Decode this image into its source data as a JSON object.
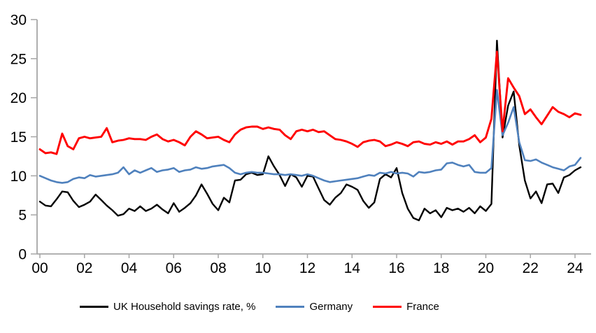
{
  "chart_data": {
    "type": "line",
    "title": "",
    "xlabel": "",
    "ylabel": "",
    "grid": false,
    "legend_position": "bottom",
    "ylim": [
      0,
      30
    ],
    "y_ticks": [
      0,
      5,
      10,
      15,
      20,
      25,
      30
    ],
    "x_tick_labels": [
      "00",
      "02",
      "04",
      "06",
      "08",
      "10",
      "12",
      "14",
      "16",
      "18",
      "20",
      "22",
      "24"
    ],
    "x_tick_step_years": 2,
    "x_start_year": 2000,
    "x_step": 0.25,
    "frequency": "quarterly",
    "axis_color": "#A6A6A6",
    "series": [
      {
        "name": "UK Household savings rate, %",
        "color": "#000000",
        "values": [
          6.7,
          6.2,
          6.1,
          7.0,
          8.0,
          7.9,
          6.8,
          6.0,
          6.3,
          6.7,
          7.6,
          6.9,
          6.2,
          5.6,
          4.9,
          5.1,
          5.8,
          5.5,
          6.1,
          5.5,
          5.8,
          6.3,
          5.7,
          5.2,
          6.5,
          5.4,
          5.9,
          6.5,
          7.5,
          8.9,
          7.7,
          6.4,
          5.6,
          7.2,
          6.6,
          9.4,
          9.5,
          10.2,
          10.4,
          10.1,
          10.2,
          12.5,
          11.2,
          10.1,
          8.7,
          10.2,
          9.8,
          8.6,
          10.0,
          9.9,
          8.4,
          6.9,
          6.3,
          7.2,
          7.8,
          8.9,
          8.6,
          8.2,
          6.8,
          5.9,
          6.6,
          9.6,
          10.2,
          9.8,
          11.0,
          7.8,
          5.8,
          4.6,
          4.3,
          5.8,
          5.2,
          5.6,
          4.7,
          5.9,
          5.6,
          5.8,
          5.4,
          5.9,
          5.2,
          6.1,
          5.5,
          6.4,
          27.3,
          14.9,
          19.0,
          20.8,
          13.9,
          9.4,
          7.1,
          8.0,
          6.5,
          8.9,
          9.0,
          7.8,
          9.8,
          10.1,
          10.7,
          11.1
        ]
      },
      {
        "name": "Germany",
        "color": "#4F81BD",
        "values": [
          10.0,
          9.7,
          9.4,
          9.2,
          9.1,
          9.2,
          9.6,
          9.8,
          9.7,
          10.1,
          9.9,
          10.0,
          10.1,
          10.2,
          10.4,
          11.1,
          10.2,
          10.7,
          10.4,
          10.7,
          11.0,
          10.5,
          10.7,
          10.8,
          11.0,
          10.5,
          10.7,
          10.8,
          11.1,
          10.9,
          11.0,
          11.2,
          11.3,
          11.4,
          11.0,
          10.4,
          10.2,
          10.4,
          10.5,
          10.4,
          10.4,
          10.3,
          10.2,
          10.2,
          10.1,
          10.2,
          10.1,
          10.0,
          10.2,
          10.0,
          9.7,
          9.4,
          9.2,
          9.3,
          9.4,
          9.5,
          9.6,
          9.7,
          9.9,
          10.1,
          10.0,
          10.4,
          10.3,
          10.5,
          10.3,
          10.4,
          10.3,
          9.9,
          10.5,
          10.4,
          10.5,
          10.7,
          10.8,
          11.6,
          11.7,
          11.4,
          11.2,
          11.4,
          10.5,
          10.4,
          10.4,
          11.0,
          21.0,
          15.2,
          16.8,
          18.8,
          14.3,
          12.0,
          11.9,
          12.1,
          11.7,
          11.4,
          11.1,
          10.9,
          10.7,
          11.2,
          11.4,
          12.3
        ]
      },
      {
        "name": "France",
        "color": "#FF0000",
        "values": [
          13.4,
          12.9,
          13.0,
          12.8,
          15.4,
          13.8,
          13.4,
          14.8,
          15.0,
          14.8,
          14.9,
          15.0,
          16.1,
          14.3,
          14.5,
          14.6,
          14.8,
          14.7,
          14.7,
          14.6,
          15.0,
          15.3,
          14.7,
          14.4,
          14.6,
          14.3,
          13.9,
          15.0,
          15.7,
          15.3,
          14.8,
          14.9,
          15.0,
          14.6,
          14.3,
          15.3,
          15.9,
          16.2,
          16.3,
          16.3,
          16.0,
          16.2,
          16.0,
          15.9,
          15.2,
          14.7,
          15.7,
          15.9,
          15.7,
          15.9,
          15.6,
          15.7,
          15.2,
          14.7,
          14.6,
          14.4,
          14.1,
          13.7,
          14.3,
          14.5,
          14.6,
          14.4,
          13.8,
          14.0,
          14.3,
          14.1,
          13.8,
          14.3,
          14.4,
          14.1,
          14.0,
          14.3,
          14.1,
          14.4,
          14.0,
          14.4,
          14.4,
          14.7,
          15.2,
          14.3,
          14.9,
          17.3,
          25.9,
          15.7,
          22.5,
          21.3,
          20.2,
          17.9,
          18.5,
          17.5,
          16.6,
          17.7,
          18.8,
          18.2,
          17.9,
          17.5,
          18.0,
          17.8
        ]
      }
    ]
  }
}
